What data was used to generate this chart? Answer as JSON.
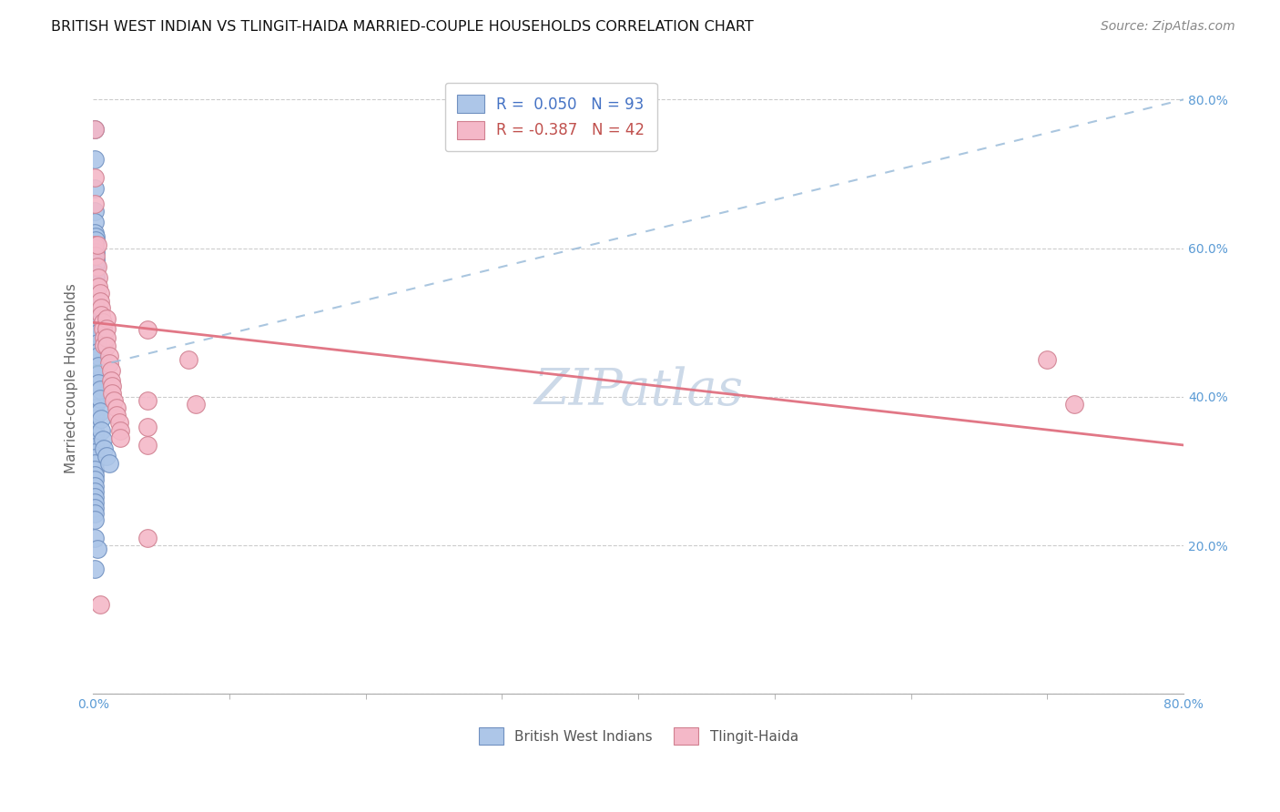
{
  "title": "BRITISH WEST INDIAN VS TLINGIT-HAIDA MARRIED-COUPLE HOUSEHOLDS CORRELATION CHART",
  "source": "Source: ZipAtlas.com",
  "ylabel": "Married-couple Households",
  "xlim": [
    0.0,
    0.8
  ],
  "ylim": [
    0.0,
    0.85
  ],
  "x_ticks_major": [
    0.0,
    0.8
  ],
  "x_ticks_minor": [
    0.1,
    0.2,
    0.3,
    0.4,
    0.5,
    0.6,
    0.7
  ],
  "y_ticks": [
    0.0,
    0.2,
    0.4,
    0.6,
    0.8
  ],
  "y_tick_labels_right": [
    "",
    "20.0%",
    "40.0%",
    "60.0%",
    "80.0%"
  ],
  "watermark": "ZIPatlas",
  "blue_scatter_color": "#adc6e8",
  "pink_scatter_color": "#f4b8c8",
  "blue_line_color": "#9bbcda",
  "pink_line_color": "#e07080",
  "blue_points": [
    [
      0.001,
      0.76
    ],
    [
      0.001,
      0.72
    ],
    [
      0.001,
      0.68
    ],
    [
      0.001,
      0.65
    ],
    [
      0.001,
      0.635
    ],
    [
      0.001,
      0.62
    ],
    [
      0.002,
      0.615
    ],
    [
      0.002,
      0.61
    ],
    [
      0.001,
      0.6
    ],
    [
      0.002,
      0.595
    ],
    [
      0.002,
      0.585
    ],
    [
      0.002,
      0.575
    ],
    [
      0.001,
      0.565
    ],
    [
      0.002,
      0.56
    ],
    [
      0.001,
      0.555
    ],
    [
      0.002,
      0.548
    ],
    [
      0.001,
      0.542
    ],
    [
      0.002,
      0.535
    ],
    [
      0.001,
      0.528
    ],
    [
      0.002,
      0.52
    ],
    [
      0.001,
      0.512
    ],
    [
      0.001,
      0.505
    ],
    [
      0.001,
      0.498
    ],
    [
      0.001,
      0.49
    ],
    [
      0.001,
      0.482
    ],
    [
      0.001,
      0.475
    ],
    [
      0.001,
      0.468
    ],
    [
      0.001,
      0.46
    ],
    [
      0.001,
      0.452
    ],
    [
      0.001,
      0.445
    ],
    [
      0.001,
      0.438
    ],
    [
      0.001,
      0.43
    ],
    [
      0.001,
      0.422
    ],
    [
      0.001,
      0.415
    ],
    [
      0.001,
      0.408
    ],
    [
      0.001,
      0.4
    ],
    [
      0.001,
      0.392
    ],
    [
      0.001,
      0.385
    ],
    [
      0.001,
      0.378
    ],
    [
      0.001,
      0.37
    ],
    [
      0.001,
      0.362
    ],
    [
      0.001,
      0.355
    ],
    [
      0.001,
      0.348
    ],
    [
      0.001,
      0.34
    ],
    [
      0.001,
      0.332
    ],
    [
      0.001,
      0.325
    ],
    [
      0.001,
      0.318
    ],
    [
      0.001,
      0.31
    ],
    [
      0.001,
      0.302
    ],
    [
      0.001,
      0.295
    ],
    [
      0.001,
      0.288
    ],
    [
      0.001,
      0.28
    ],
    [
      0.001,
      0.272
    ],
    [
      0.001,
      0.265
    ],
    [
      0.001,
      0.258
    ],
    [
      0.001,
      0.25
    ],
    [
      0.001,
      0.243
    ],
    [
      0.001,
      0.235
    ],
    [
      0.002,
      0.58
    ],
    [
      0.002,
      0.565
    ],
    [
      0.002,
      0.55
    ],
    [
      0.002,
      0.538
    ],
    [
      0.002,
      0.52
    ],
    [
      0.003,
      0.51
    ],
    [
      0.003,
      0.498
    ],
    [
      0.003,
      0.485
    ],
    [
      0.003,
      0.472
    ],
    [
      0.003,
      0.46
    ],
    [
      0.004,
      0.455
    ],
    [
      0.004,
      0.442
    ],
    [
      0.004,
      0.43
    ],
    [
      0.004,
      0.418
    ],
    [
      0.005,
      0.41
    ],
    [
      0.005,
      0.398
    ],
    [
      0.005,
      0.38
    ],
    [
      0.006,
      0.37
    ],
    [
      0.006,
      0.355
    ],
    [
      0.007,
      0.342
    ],
    [
      0.008,
      0.33
    ],
    [
      0.01,
      0.32
    ],
    [
      0.012,
      0.31
    ],
    [
      0.001,
      0.21
    ],
    [
      0.003,
      0.195
    ],
    [
      0.001,
      0.168
    ]
  ],
  "pink_points": [
    [
      0.001,
      0.76
    ],
    [
      0.001,
      0.695
    ],
    [
      0.001,
      0.66
    ],
    [
      0.001,
      0.605
    ],
    [
      0.002,
      0.59
    ],
    [
      0.003,
      0.605
    ],
    [
      0.003,
      0.575
    ],
    [
      0.004,
      0.56
    ],
    [
      0.004,
      0.548
    ],
    [
      0.005,
      0.54
    ],
    [
      0.005,
      0.528
    ],
    [
      0.006,
      0.52
    ],
    [
      0.006,
      0.51
    ],
    [
      0.007,
      0.5
    ],
    [
      0.007,
      0.492
    ],
    [
      0.008,
      0.48
    ],
    [
      0.008,
      0.47
    ],
    [
      0.01,
      0.505
    ],
    [
      0.01,
      0.492
    ],
    [
      0.01,
      0.48
    ],
    [
      0.01,
      0.468
    ],
    [
      0.012,
      0.455
    ],
    [
      0.012,
      0.445
    ],
    [
      0.013,
      0.435
    ],
    [
      0.013,
      0.422
    ],
    [
      0.014,
      0.415
    ],
    [
      0.014,
      0.405
    ],
    [
      0.015,
      0.395
    ],
    [
      0.017,
      0.385
    ],
    [
      0.017,
      0.375
    ],
    [
      0.019,
      0.365
    ],
    [
      0.02,
      0.355
    ],
    [
      0.02,
      0.345
    ],
    [
      0.04,
      0.49
    ],
    [
      0.04,
      0.395
    ],
    [
      0.04,
      0.36
    ],
    [
      0.04,
      0.335
    ],
    [
      0.07,
      0.45
    ],
    [
      0.075,
      0.39
    ],
    [
      0.7,
      0.45
    ],
    [
      0.72,
      0.39
    ],
    [
      0.04,
      0.21
    ],
    [
      0.005,
      0.12
    ]
  ],
  "blue_line": {
    "x0": 0.0,
    "y0": 0.44,
    "x1": 0.8,
    "y1": 0.8
  },
  "pink_line": {
    "x0": 0.0,
    "y0": 0.5,
    "x1": 0.8,
    "y1": 0.335
  },
  "title_fontsize": 11.5,
  "source_fontsize": 10,
  "watermark_fontsize": 40,
  "watermark_color": "#ccd9e8",
  "background_color": "#ffffff",
  "grid_color": "#cccccc",
  "tick_label_fontsize": 10,
  "right_tick_color": "#5b9bd5",
  "ylabel_fontsize": 11
}
